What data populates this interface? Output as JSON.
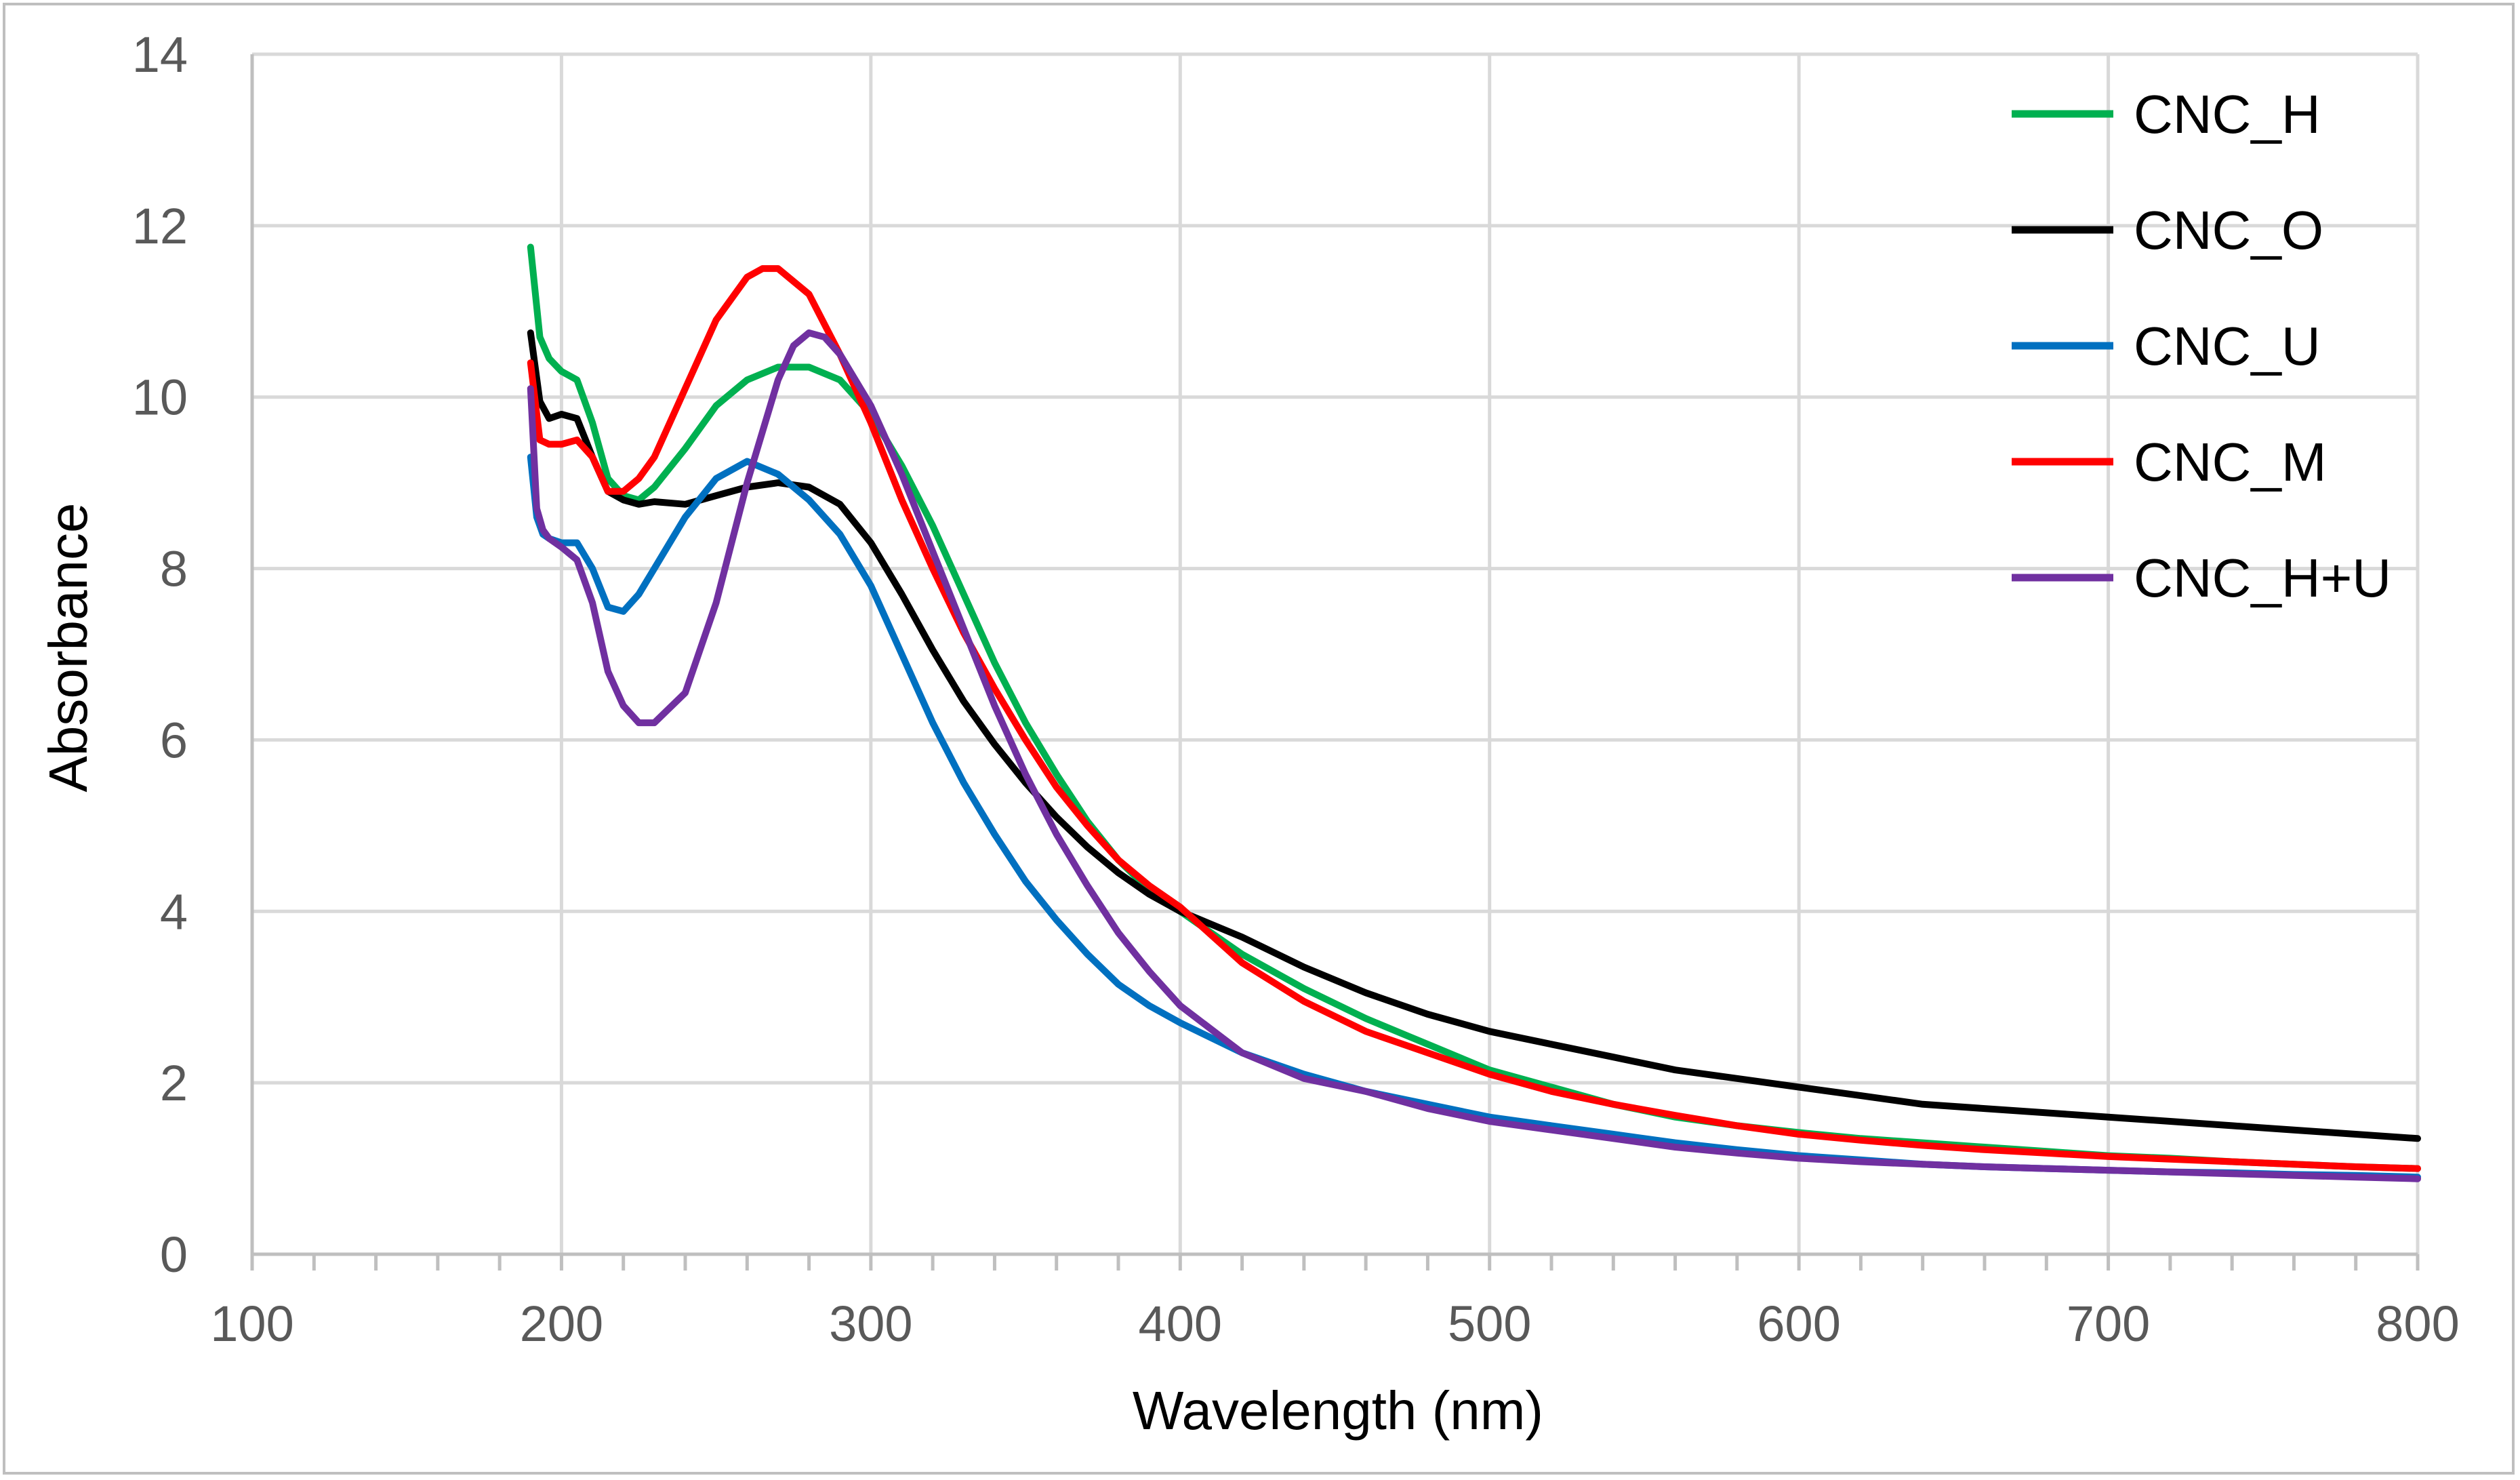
{
  "chart_data": {
    "type": "line",
    "title": "",
    "xlabel": "Wavelength (nm)",
    "ylabel": "Absorbance",
    "xlim": [
      100,
      800
    ],
    "ylim": [
      0,
      14
    ],
    "xticks": [
      100,
      200,
      300,
      400,
      500,
      600,
      700,
      800
    ],
    "xtick_labels": [
      "100",
      "200",
      "300",
      "400",
      "500",
      "600",
      "700",
      "800"
    ],
    "xminor_step": 20,
    "yticks": [
      0,
      2,
      4,
      6,
      8,
      10,
      12,
      14
    ],
    "ytick_labels": [
      "0",
      "2",
      "4",
      "6",
      "8",
      "10",
      "12",
      "14"
    ],
    "grid": true,
    "legend_position": "top-right",
    "series": [
      {
        "name": "CNC_H",
        "color": "#00B050",
        "x": [
          190,
          193,
          196,
          200,
          205,
          210,
          215,
          220,
          225,
          230,
          240,
          250,
          260,
          270,
          280,
          290,
          300,
          310,
          320,
          330,
          340,
          350,
          360,
          370,
          380,
          390,
          400,
          420,
          440,
          460,
          480,
          500,
          520,
          540,
          560,
          580,
          600,
          620,
          640,
          660,
          680,
          700,
          720,
          740,
          760,
          780,
          800
        ],
        "y": [
          11.75,
          10.7,
          10.45,
          10.3,
          10.2,
          9.7,
          9.05,
          8.85,
          8.8,
          8.95,
          9.4,
          9.9,
          10.2,
          10.35,
          10.35,
          10.2,
          9.8,
          9.2,
          8.5,
          7.7,
          6.9,
          6.2,
          5.6,
          5.05,
          4.6,
          4.25,
          4.0,
          3.5,
          3.1,
          2.75,
          2.45,
          2.15,
          1.95,
          1.75,
          1.6,
          1.5,
          1.42,
          1.35,
          1.3,
          1.25,
          1.2,
          1.15,
          1.12,
          1.08,
          1.05,
          1.02,
          1.0
        ]
      },
      {
        "name": "CNC_O",
        "color": "#000000",
        "x": [
          190,
          193,
          196,
          200,
          205,
          210,
          215,
          220,
          225,
          230,
          240,
          250,
          260,
          270,
          280,
          290,
          300,
          310,
          320,
          330,
          340,
          350,
          360,
          370,
          380,
          390,
          400,
          420,
          440,
          460,
          480,
          500,
          520,
          540,
          560,
          580,
          600,
          620,
          640,
          660,
          680,
          700,
          720,
          740,
          760,
          780,
          800
        ],
        "y": [
          10.75,
          9.95,
          9.75,
          9.8,
          9.75,
          9.3,
          8.9,
          8.8,
          8.75,
          8.78,
          8.75,
          8.85,
          8.95,
          9.0,
          8.95,
          8.75,
          8.3,
          7.7,
          7.05,
          6.45,
          5.95,
          5.5,
          5.1,
          4.75,
          4.45,
          4.2,
          4.0,
          3.7,
          3.35,
          3.05,
          2.8,
          2.6,
          2.45,
          2.3,
          2.15,
          2.05,
          1.95,
          1.85,
          1.75,
          1.7,
          1.65,
          1.6,
          1.55,
          1.5,
          1.45,
          1.4,
          1.35
        ]
      },
      {
        "name": "CNC_U",
        "color": "#0070C0",
        "x": [
          190,
          192,
          194,
          196,
          200,
          205,
          210,
          215,
          220,
          225,
          230,
          240,
          250,
          260,
          270,
          280,
          290,
          300,
          310,
          320,
          330,
          340,
          350,
          360,
          370,
          380,
          390,
          400,
          420,
          440,
          460,
          480,
          500,
          520,
          540,
          560,
          580,
          600,
          620,
          640,
          660,
          680,
          700,
          720,
          740,
          760,
          780,
          800
        ],
        "y": [
          9.3,
          8.6,
          8.4,
          8.35,
          8.3,
          8.3,
          8.0,
          7.55,
          7.5,
          7.7,
          8.0,
          8.6,
          9.05,
          9.25,
          9.1,
          8.8,
          8.4,
          7.8,
          7.0,
          6.2,
          5.5,
          4.9,
          4.35,
          3.9,
          3.5,
          3.15,
          2.9,
          2.7,
          2.35,
          2.1,
          1.9,
          1.75,
          1.6,
          1.5,
          1.4,
          1.3,
          1.22,
          1.15,
          1.1,
          1.05,
          1.02,
          1.0,
          0.98,
          0.96,
          0.95,
          0.93,
          0.92,
          0.9
        ]
      },
      {
        "name": "CNC_M",
        "color": "#FF0000",
        "x": [
          190,
          193,
          196,
          200,
          205,
          210,
          215,
          220,
          225,
          230,
          240,
          250,
          260,
          265,
          270,
          280,
          290,
          300,
          310,
          320,
          330,
          340,
          350,
          360,
          370,
          380,
          390,
          400,
          420,
          440,
          460,
          480,
          500,
          520,
          540,
          560,
          580,
          600,
          620,
          640,
          660,
          680,
          700,
          720,
          740,
          760,
          780,
          800
        ],
        "y": [
          10.4,
          9.5,
          9.45,
          9.45,
          9.5,
          9.3,
          8.9,
          8.9,
          9.05,
          9.3,
          10.1,
          10.9,
          11.4,
          11.5,
          11.5,
          11.2,
          10.5,
          9.7,
          8.8,
          8.0,
          7.25,
          6.6,
          6.0,
          5.45,
          5.0,
          4.6,
          4.3,
          4.05,
          3.4,
          2.95,
          2.6,
          2.35,
          2.1,
          1.9,
          1.75,
          1.62,
          1.5,
          1.4,
          1.33,
          1.27,
          1.22,
          1.18,
          1.14,
          1.11,
          1.08,
          1.05,
          1.02,
          1.0
        ]
      },
      {
        "name": "CNC_H+U",
        "color": "#7030A0",
        "x": [
          190,
          192,
          194,
          196,
          200,
          205,
          210,
          215,
          220,
          225,
          230,
          240,
          250,
          260,
          270,
          275,
          280,
          285,
          290,
          300,
          310,
          320,
          330,
          340,
          350,
          360,
          370,
          380,
          390,
          400,
          420,
          440,
          460,
          480,
          500,
          520,
          540,
          560,
          580,
          600,
          620,
          640,
          660,
          680,
          700,
          720,
          740,
          760,
          780,
          800
        ],
        "y": [
          10.1,
          8.7,
          8.45,
          8.35,
          8.25,
          8.1,
          7.6,
          6.8,
          6.4,
          6.2,
          6.2,
          6.55,
          7.6,
          9.0,
          10.2,
          10.6,
          10.75,
          10.7,
          10.5,
          9.9,
          9.1,
          8.2,
          7.3,
          6.4,
          5.6,
          4.9,
          4.3,
          3.75,
          3.3,
          2.9,
          2.35,
          2.05,
          1.9,
          1.7,
          1.55,
          1.45,
          1.35,
          1.25,
          1.18,
          1.12,
          1.08,
          1.05,
          1.02,
          1.0,
          0.98,
          0.96,
          0.94,
          0.92,
          0.9,
          0.88
        ]
      }
    ]
  }
}
